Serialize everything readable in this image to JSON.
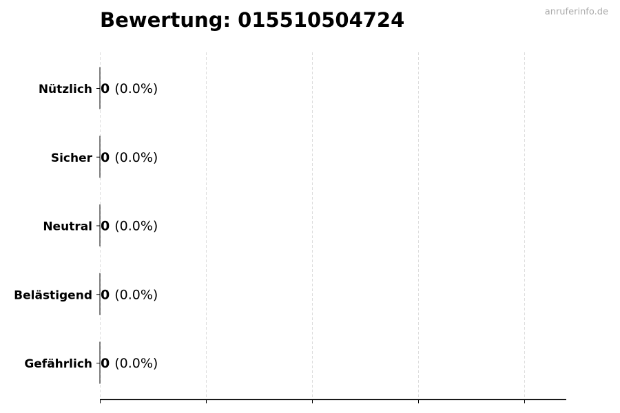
{
  "chart_data": {
    "type": "bar",
    "orientation": "horizontal",
    "title": "Bewertung: 015510504724",
    "watermark": "anruferinfo.de",
    "categories": [
      "Nützlich",
      "Sicher",
      "Neutral",
      "Belästigend",
      "Gefährlich"
    ],
    "values": [
      0,
      0,
      0,
      0,
      0
    ],
    "data_labels": [
      {
        "count": "0",
        "percent": "(0.0%)"
      },
      {
        "count": "0",
        "percent": "(0.0%)"
      },
      {
        "count": "0",
        "percent": "(0.0%)"
      },
      {
        "count": "0",
        "percent": "(0.0%)"
      },
      {
        "count": "0",
        "percent": "(0.0%)"
      }
    ],
    "xlabel": "",
    "ylabel": "",
    "x_tick_count": 5,
    "x_tick_labels_shown": false,
    "grid": "x, dashed",
    "legend": "none",
    "colors": {
      "grid": "#dddddd",
      "axis": "#000000",
      "watermark": "#aaaaaa"
    }
  }
}
